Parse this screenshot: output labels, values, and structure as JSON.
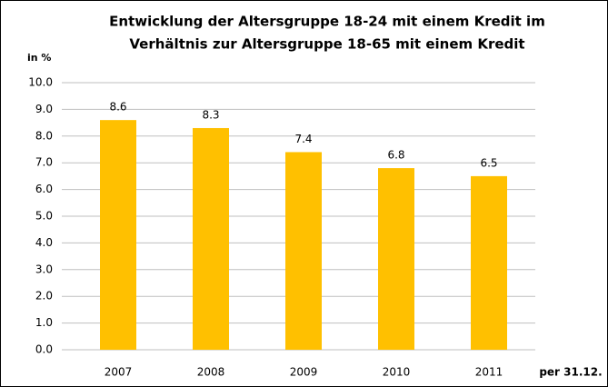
{
  "chart_data": {
    "type": "bar",
    "title": [
      "Entwicklung der Altersgruppe 18-24 mit einem Kredit im",
      "Verhältnis zur Altersgruppe 18-65 mit einem Kredit"
    ],
    "y_label": "in %",
    "x_label": "per 31.12.",
    "categories": [
      "2007",
      "2008",
      "2009",
      "2010",
      "2011"
    ],
    "values": [
      8.6,
      8.3,
      7.4,
      6.8,
      6.5
    ],
    "color": "#ffc000",
    "ylim": [
      0,
      10
    ],
    "yticks": [
      {
        "value": 0,
        "label": "0.0"
      },
      {
        "value": 1,
        "label": "1.0"
      },
      {
        "value": 2,
        "label": "2.0"
      },
      {
        "value": 3,
        "label": "3.0"
      },
      {
        "value": 4,
        "label": "4.0"
      },
      {
        "value": 5,
        "label": "5.0"
      },
      {
        "value": 6,
        "label": "6.0"
      },
      {
        "value": 7,
        "label": "7.0"
      },
      {
        "value": 8,
        "label": "8.0"
      },
      {
        "value": 9,
        "label": "9.0"
      },
      {
        "value": 10,
        "label": "10.0"
      }
    ],
    "grid": true
  }
}
